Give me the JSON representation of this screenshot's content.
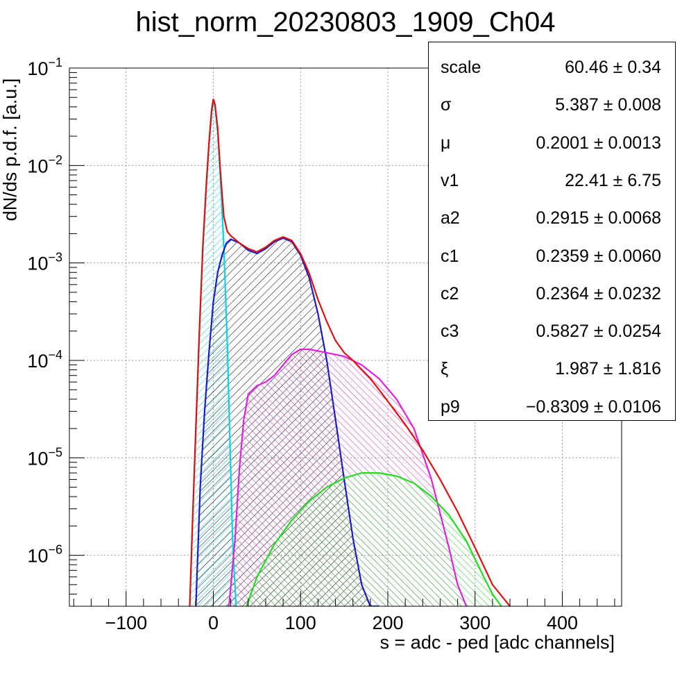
{
  "chart_data": {
    "type": "line",
    "title": "hist_norm_20230803_1909_Ch04",
    "xlabel": "s = adc - ped [adc channels]",
    "ylabel": "dN/ds p.d.f. [a.u.]",
    "xlim": [
      -165,
      468
    ],
    "ylim": [
      3e-07,
      0.1
    ],
    "yscale": "log",
    "grid": true,
    "xticks": [
      {
        "v": -100,
        "label": "−100"
      },
      {
        "v": 0,
        "label": "0"
      },
      {
        "v": 100,
        "label": "100"
      },
      {
        "v": 200,
        "label": "200"
      },
      {
        "v": 300,
        "label": "300"
      },
      {
        "v": 400,
        "label": "400"
      }
    ],
    "yticks": [
      {
        "exp": -6,
        "v": 1e-06,
        "base": "10",
        "sup": "−6"
      },
      {
        "exp": -5,
        "v": 1e-05,
        "base": "10",
        "sup": "−5"
      },
      {
        "exp": -4,
        "v": 0.0001,
        "base": "10",
        "sup": "−4"
      },
      {
        "exp": -3,
        "v": 0.001,
        "base": "10",
        "sup": "−3"
      },
      {
        "exp": -2,
        "v": 0.01,
        "base": "10",
        "sup": "−2"
      },
      {
        "exp": -1,
        "v": 0.1,
        "base": "10",
        "sup": "−1"
      }
    ],
    "series": [
      {
        "color": "#00d6e6",
        "hatch": "cyan",
        "x": [
          -27,
          -24,
          -20,
          -16,
          -12,
          -8,
          -5,
          -2,
          0,
          2,
          5,
          8,
          12,
          16,
          19,
          22,
          26
        ],
        "y": [
          3e-07,
          2e-06,
          2e-05,
          0.0002,
          0.0014,
          0.006,
          0.016,
          0.035,
          0.045,
          0.04,
          0.022,
          0.008,
          0.0015,
          0.00015,
          1.5e-05,
          1.5e-06,
          3e-07
        ]
      },
      {
        "color": "#1a1acc",
        "hatch": "blue",
        "x": [
          -20,
          -15,
          -10,
          -5,
          0,
          5,
          10,
          15,
          20,
          30,
          40,
          50,
          60,
          70,
          80,
          90,
          100,
          110,
          120,
          130,
          140,
          150,
          160,
          170,
          180,
          190
        ],
        "y": [
          3e-07,
          5e-06,
          3e-05,
          0.00012,
          0.0004,
          0.0008,
          0.0012,
          0.0016,
          0.00175,
          0.0016,
          0.00135,
          0.00125,
          0.0014,
          0.00165,
          0.0018,
          0.00165,
          0.0012,
          0.0007,
          0.0003,
          0.0001,
          2.5e-05,
          6e-06,
          1.5e-06,
          5e-07,
          3e-07,
          3e-07
        ]
      },
      {
        "color": "#e020e0",
        "hatch": "magenta",
        "x": [
          18,
          25,
          30,
          35,
          40,
          50,
          60,
          70,
          80,
          90,
          100,
          110,
          120,
          130,
          150,
          170,
          190,
          210,
          230,
          250,
          270,
          280,
          290
        ],
        "y": [
          3e-07,
          1.5e-06,
          8e-06,
          2.5e-05,
          4.5e-05,
          5.5e-05,
          6e-05,
          7e-05,
          9e-05,
          0.000115,
          0.00013,
          0.00013,
          0.000125,
          0.00012,
          0.00011,
          9e-05,
          6.5e-05,
          4e-05,
          2e-05,
          6e-06,
          1.2e-06,
          5e-07,
          3e-07
        ]
      },
      {
        "color": "#20dd20",
        "hatch": "green",
        "x": [
          38,
          50,
          70,
          90,
          110,
          130,
          150,
          170,
          190,
          210,
          230,
          250,
          270,
          290,
          310,
          320,
          330
        ],
        "y": [
          3e-07,
          6e-07,
          1.3e-06,
          2.3e-06,
          3.6e-06,
          5e-06,
          6.2e-06,
          7e-06,
          7e-06,
          6.5e-06,
          5.5e-06,
          4e-06,
          2.6e-06,
          1.4e-06,
          6e-07,
          4e-07,
          3e-07
        ]
      },
      {
        "color": "#e01010",
        "hatch": "",
        "x": [
          -27,
          -24,
          -20,
          -16,
          -12,
          -8,
          -5,
          -2,
          0,
          2,
          5,
          8,
          12,
          16,
          20,
          30,
          40,
          50,
          60,
          70,
          80,
          90,
          100,
          110,
          120,
          130,
          140,
          150,
          160,
          170,
          180,
          190,
          200,
          220,
          240,
          260,
          280,
          300,
          320,
          340
        ],
        "y": [
          3e-07,
          2e-06,
          2e-05,
          0.0002,
          0.0015,
          0.0065,
          0.017,
          0.037,
          0.048,
          0.042,
          0.024,
          0.009,
          0.003,
          0.0021,
          0.0019,
          0.0016,
          0.0014,
          0.0013,
          0.00145,
          0.0017,
          0.00185,
          0.0017,
          0.00125,
          0.00078,
          0.00042,
          0.00025,
          0.00016,
          0.00012,
          0.0001,
          8e-05,
          6.5e-05,
          5e-05,
          3.8e-05,
          2.2e-05,
          1.2e-05,
          6e-06,
          2.8e-06,
          1.2e-06,
          5e-07,
          3e-07
        ]
      }
    ]
  },
  "stats": [
    {
      "name": "scale",
      "value": "60.46 ± 0.34"
    },
    {
      "name": "σ",
      "value": "5.387 ± 0.008"
    },
    {
      "name": "μ",
      "value": "0.2001 ± 0.0013"
    },
    {
      "name": "v1",
      "value": "22.41 ± 6.75"
    },
    {
      "name": "a2",
      "value": "0.2915 ± 0.0068"
    },
    {
      "name": "c1",
      "value": "0.2359 ± 0.0060"
    },
    {
      "name": "c2",
      "value": "0.2364 ± 0.0232"
    },
    {
      "name": "c3",
      "value": "0.5827 ± 0.0254"
    },
    {
      "name": "ξ",
      "value": "1.987 ± 1.816"
    },
    {
      "name": "p9",
      "value": "−0.8309 ± 0.0106"
    }
  ]
}
